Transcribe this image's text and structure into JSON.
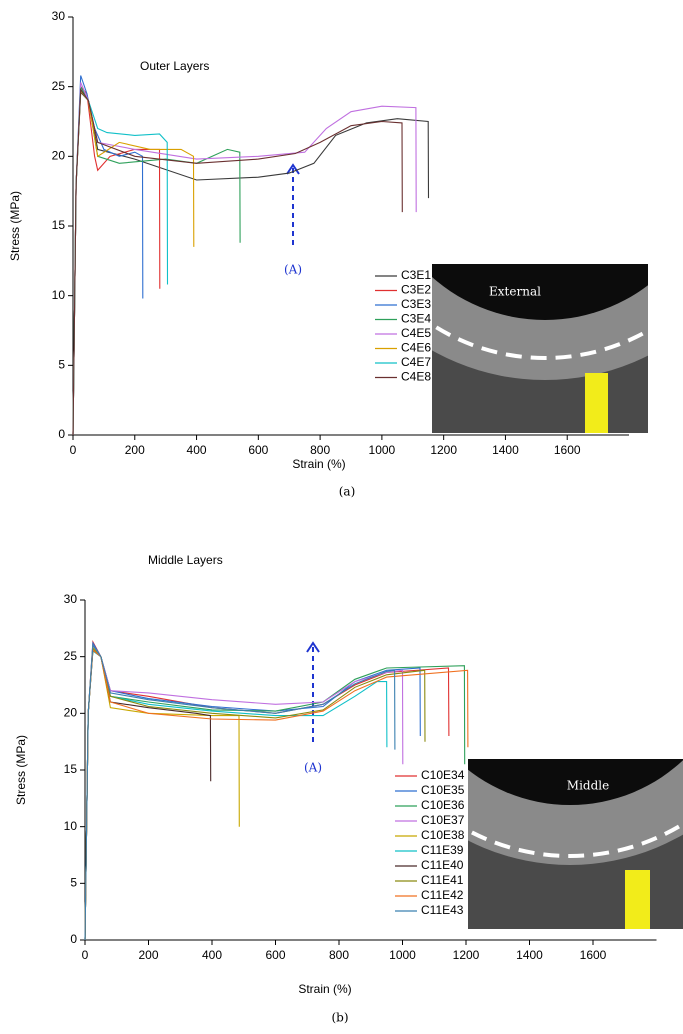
{
  "chart_data": [
    {
      "type": "line",
      "title": "Outer Layers",
      "xlabel": "Strain (%)",
      "ylabel": "Stress (MPa)",
      "panel_label": "(a)",
      "annotation": "(A)",
      "inset_label": "External",
      "xlim": [
        0,
        1800
      ],
      "xticks": [
        0,
        200,
        400,
        600,
        800,
        1000,
        1200,
        1400,
        1600
      ],
      "ylim": [
        0,
        30
      ],
      "yticks": [
        0,
        5,
        10,
        15,
        20,
        25,
        30
      ],
      "grid": false,
      "series": [
        {
          "name": "C3E1",
          "color": "#3a3a3a",
          "x": [
            0,
            10,
            25,
            50,
            80,
            200,
            400,
            600,
            700,
            780,
            850,
            950,
            1050,
            1150,
            1151
          ],
          "values": [
            0,
            18,
            24.6,
            24,
            20.5,
            19.8,
            18.3,
            18.5,
            18.8,
            19.5,
            21.5,
            22.4,
            22.7,
            22.5,
            17
          ]
        },
        {
          "name": "C3E2",
          "color": "#e03030",
          "x": [
            0,
            10,
            25,
            45,
            70,
            80,
            120,
            200,
            280,
            281
          ],
          "values": [
            0,
            18,
            25,
            24.5,
            20,
            19,
            20,
            20.5,
            20.5,
            10.5
          ]
        },
        {
          "name": "C3E3",
          "color": "#2f6fd0",
          "x": [
            0,
            10,
            25,
            45,
            70,
            100,
            150,
            200,
            225,
            226
          ],
          "values": [
            0,
            18,
            25.8,
            24.5,
            22,
            20.5,
            20,
            20.3,
            20,
            9.8
          ]
        },
        {
          "name": "C3E4",
          "color": "#2ea05a",
          "x": [
            0,
            10,
            25,
            50,
            80,
            150,
            300,
            400,
            500,
            540,
            541
          ],
          "values": [
            0,
            18,
            25,
            24,
            20,
            19.5,
            19.8,
            19.5,
            20.5,
            20.3,
            13.8
          ]
        },
        {
          "name": "C4E5",
          "color": "#c070e0",
          "x": [
            0,
            10,
            25,
            50,
            80,
            200,
            400,
            600,
            750,
            820,
            900,
            1000,
            1110,
            1111
          ],
          "values": [
            0,
            18,
            25.3,
            24,
            21,
            20.5,
            19.8,
            20,
            20.3,
            22,
            23.2,
            23.6,
            23.5,
            16
          ]
        },
        {
          "name": "C4E6",
          "color": "#d9a000",
          "x": [
            0,
            10,
            25,
            50,
            80,
            150,
            250,
            350,
            390,
            391
          ],
          "values": [
            0,
            18,
            24.7,
            24,
            20,
            21,
            20.5,
            20.5,
            20,
            13.5
          ]
        },
        {
          "name": "C4E7",
          "color": "#10c0c8",
          "x": [
            0,
            10,
            25,
            50,
            80,
            110,
            200,
            280,
            305,
            306
          ],
          "values": [
            0,
            18,
            24.8,
            24,
            22,
            21.7,
            21.5,
            21.6,
            21,
            10.8
          ]
        },
        {
          "name": "C4E8",
          "color": "#6a3030",
          "x": [
            0,
            10,
            25,
            50,
            80,
            200,
            400,
            600,
            720,
            800,
            900,
            1000,
            1065,
            1066
          ],
          "values": [
            0,
            18,
            24.8,
            24,
            21,
            20,
            19.5,
            19.8,
            20.2,
            21,
            22.2,
            22.5,
            22.4,
            16
          ]
        }
      ]
    },
    {
      "type": "line",
      "title": "Middle Layers",
      "xlabel": "Strain (%)",
      "ylabel": "Stress (MPa)",
      "panel_label": "(b)",
      "annotation": "(A)",
      "inset_label": "Middle",
      "xlim": [
        0,
        1800
      ],
      "xticks": [
        0,
        200,
        400,
        600,
        800,
        1000,
        1200,
        1400,
        1600
      ],
      "ylim": [
        0,
        30
      ],
      "yticks": [
        0,
        5,
        10,
        15,
        20,
        25,
        30
      ],
      "grid": false,
      "series": [
        {
          "name": "C10E34",
          "color": "#e03030",
          "x": [
            0,
            10,
            25,
            50,
            80,
            200,
            400,
            600,
            750,
            850,
            950,
            1145,
            1146
          ],
          "values": [
            0,
            20,
            26.3,
            25,
            22,
            21.5,
            20.5,
            20,
            20.8,
            22.5,
            23.6,
            24,
            18
          ]
        },
        {
          "name": "C10E35",
          "color": "#2f6fd0",
          "x": [
            0,
            10,
            25,
            50,
            80,
            200,
            400,
            600,
            750,
            850,
            950,
            1055,
            1056
          ],
          "values": [
            0,
            20,
            26.2,
            25,
            22,
            21.3,
            20.6,
            20.2,
            20.6,
            22.8,
            23.8,
            24,
            18
          ]
        },
        {
          "name": "C10E36",
          "color": "#2ea05a",
          "x": [
            0,
            10,
            25,
            50,
            80,
            200,
            400,
            600,
            750,
            850,
            950,
            1195,
            1196
          ],
          "values": [
            0,
            20,
            26,
            25,
            21.5,
            21,
            20.3,
            20.2,
            21,
            23,
            24,
            24.2,
            15.5
          ]
        },
        {
          "name": "C10E37",
          "color": "#c070e0",
          "x": [
            0,
            10,
            25,
            50,
            80,
            200,
            400,
            600,
            750,
            850,
            950,
            1000,
            1001
          ],
          "values": [
            0,
            20,
            26,
            25,
            22,
            21.8,
            21.2,
            20.8,
            21,
            22.8,
            23.6,
            23.8,
            15.5
          ]
        },
        {
          "name": "C10E38",
          "color": "#c8a800",
          "x": [
            0,
            10,
            25,
            50,
            80,
            200,
            400,
            485,
            486
          ],
          "values": [
            0,
            20,
            25.8,
            25,
            20.5,
            20,
            19.8,
            19.8,
            10
          ]
        },
        {
          "name": "C11E39",
          "color": "#10c0c8",
          "x": [
            0,
            10,
            25,
            50,
            80,
            200,
            400,
            600,
            750,
            850,
            920,
            950,
            951
          ],
          "values": [
            0,
            20,
            25.5,
            25,
            21.5,
            20.8,
            20.2,
            19.8,
            19.8,
            21.5,
            22.8,
            22.8,
            17
          ]
        },
        {
          "name": "C11E40",
          "color": "#4a2a2a",
          "x": [
            0,
            10,
            25,
            50,
            80,
            200,
            350,
            395,
            396
          ],
          "values": [
            0,
            20,
            25.6,
            25,
            21,
            20.5,
            20,
            19.8,
            14
          ]
        },
        {
          "name": "C11E41",
          "color": "#8a8a10",
          "x": [
            0,
            10,
            25,
            50,
            80,
            200,
            400,
            600,
            750,
            850,
            950,
            1070,
            1071
          ],
          "values": [
            0,
            20,
            25.7,
            25,
            21.5,
            20.6,
            20,
            19.6,
            20.3,
            22.3,
            23.4,
            23.8,
            17.5
          ]
        },
        {
          "name": "C11E42",
          "color": "#f07020",
          "x": [
            0,
            10,
            25,
            50,
            80,
            200,
            400,
            600,
            750,
            850,
            950,
            1205,
            1206
          ],
          "values": [
            0,
            20,
            25.6,
            25,
            21,
            20,
            19.5,
            19.4,
            20.2,
            22,
            23.2,
            23.8,
            17
          ]
        },
        {
          "name": "C11E43",
          "color": "#3a80b0",
          "x": [
            0,
            10,
            25,
            50,
            80,
            200,
            400,
            600,
            750,
            850,
            950,
            975,
            976
          ],
          "values": [
            0,
            20,
            26,
            25,
            21.8,
            21.2,
            20.5,
            20,
            20.8,
            22.6,
            23.7,
            23.8,
            16.8
          ]
        }
      ]
    }
  ]
}
